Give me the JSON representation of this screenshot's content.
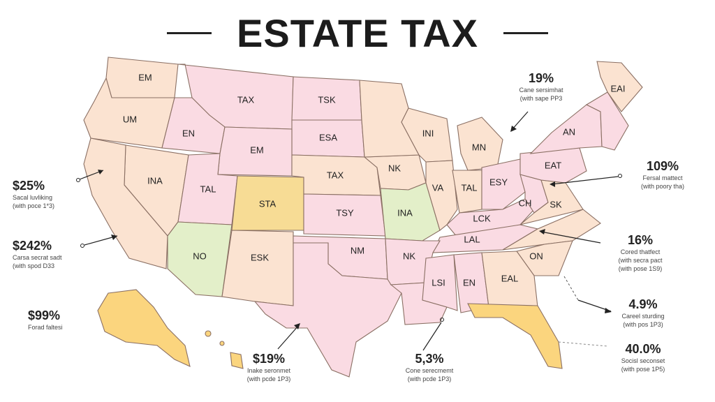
{
  "title": "ESTATE TAX",
  "colors": {
    "peach": "#fbe3d1",
    "pink": "#fadbe3",
    "yellow": "#f7dc95",
    "green": "#e3efc9",
    "gold": "#fbd57e",
    "border": "#8a6f63"
  },
  "states": [
    {
      "id": "wa",
      "label": "EM"
    },
    {
      "id": "or",
      "label": "UM"
    },
    {
      "id": "mt",
      "label": "TAX"
    },
    {
      "id": "id",
      "label": "EN"
    },
    {
      "id": "nd",
      "label": "TSK"
    },
    {
      "id": "sd",
      "label": "ESA"
    },
    {
      "id": "wy",
      "label": "EM"
    },
    {
      "id": "nv",
      "label": "INA"
    },
    {
      "id": "ut",
      "label": "TAL"
    },
    {
      "id": "co",
      "label": "STA"
    },
    {
      "id": "ne",
      "label": "TAX"
    },
    {
      "id": "ks",
      "label": "TSY"
    },
    {
      "id": "ia",
      "label": "NK"
    },
    {
      "id": "mo",
      "label": "INA"
    },
    {
      "id": "wi",
      "label": "INI"
    },
    {
      "id": "mi",
      "label": "MN"
    },
    {
      "id": "il",
      "label": "VA"
    },
    {
      "id": "in",
      "label": "TAL"
    },
    {
      "id": "oh",
      "label": "ESY"
    },
    {
      "id": "pa",
      "label": "EAT"
    },
    {
      "id": "ny",
      "label": "AN"
    },
    {
      "id": "me",
      "label": "EAI"
    },
    {
      "id": "az",
      "label": "NO"
    },
    {
      "id": "nm",
      "label": "ESK"
    },
    {
      "id": "ok",
      "label": "NM"
    },
    {
      "id": "ar",
      "label": "NK"
    },
    {
      "id": "wv",
      "label": "CH"
    },
    {
      "id": "va",
      "label": "SK"
    },
    {
      "id": "ky",
      "label": "LCK"
    },
    {
      "id": "tn",
      "label": "LAL"
    },
    {
      "id": "nc",
      "label": "ON"
    },
    {
      "id": "ms",
      "label": "LSI"
    },
    {
      "id": "al",
      "label": "EN"
    },
    {
      "id": "ga",
      "label": "EAL"
    }
  ],
  "callouts": [
    {
      "id": "c1",
      "value": "$25%",
      "note": "Sacal luvliking\n(with poce 1*3)"
    },
    {
      "id": "c2",
      "value": "$242%",
      "note": "Carsa secrat sadt\n(with spod D33"
    },
    {
      "id": "c3",
      "value": "$99%",
      "note": "Forad faltesi"
    },
    {
      "id": "c4",
      "value": "$19%",
      "note": "Inake seronmet\n(with pcde 1P3)"
    },
    {
      "id": "c5",
      "value": "5,3%",
      "note": "Cone serecmemt\n(with pcde 1P3)"
    },
    {
      "id": "c6",
      "value": "19%",
      "note": "Cane sersimhat\n(with sape PP3"
    },
    {
      "id": "c7",
      "value": "109%",
      "note": "Fersal mattect\n(with poory tha)"
    },
    {
      "id": "c8",
      "value": "16%",
      "note": "Cored thatfect\n(with secra pact\n(with pose 1S9)"
    },
    {
      "id": "c9",
      "value": "4.9%",
      "note": "Careel sturding\n(with pos 1P3)"
    },
    {
      "id": "c10",
      "value": "40.0%",
      "note": "Socisl seconset\n(with pose 1P5)"
    }
  ]
}
